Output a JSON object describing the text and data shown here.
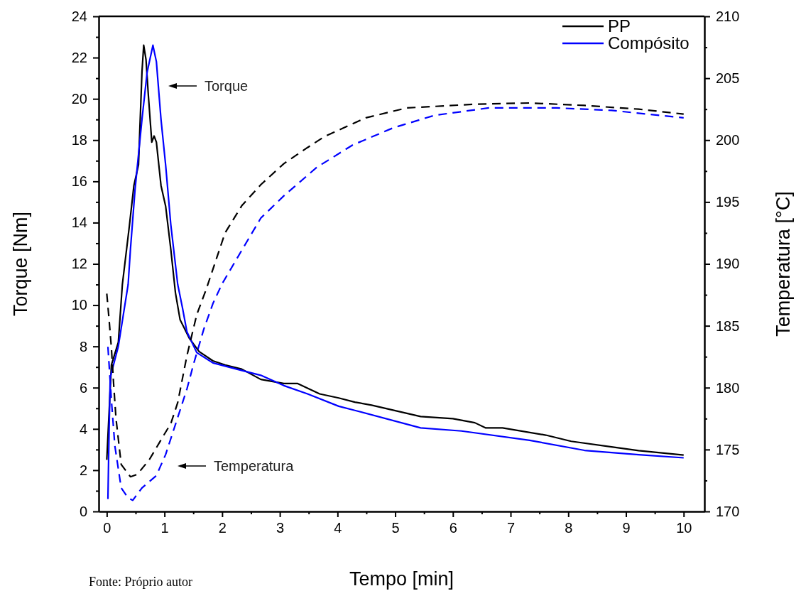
{
  "chart_data": {
    "type": "line",
    "xlabel": "Tempo [min]",
    "ylabel": "Torque [Nm]",
    "y2label": "Temperatura [°C]",
    "legend": "top right",
    "xlim": [
      -0.14,
      10.36
    ],
    "ylim": [
      0,
      24
    ],
    "y2lim": [
      170,
      210
    ],
    "xticks": [
      0,
      {
        "value": 0.5,
        "label": null
      },
      1,
      {
        "value": 1.5,
        "label": null
      },
      2,
      {
        "value": 2.5,
        "label": null
      },
      3,
      {
        "value": 3.5,
        "label": null
      },
      4,
      {
        "value": 4.5,
        "label": null
      },
      5,
      {
        "value": 5.5,
        "label": null
      },
      6,
      {
        "value": 6.5,
        "label": null
      },
      7,
      {
        "value": 7.5,
        "label": null
      },
      8,
      {
        "value": 8.5,
        "label": null
      },
      9,
      {
        "value": 9.5,
        "label": null
      },
      10
    ],
    "yticks": [
      0,
      {
        "value": 1,
        "label": null
      },
      2,
      {
        "value": 3,
        "label": null
      },
      4,
      {
        "value": 5,
        "label": null
      },
      6,
      {
        "value": 7,
        "label": null
      },
      8,
      {
        "value": 9,
        "label": null
      },
      10,
      {
        "value": 11,
        "label": null
      },
      12,
      {
        "value": 13,
        "label": null
      },
      14,
      {
        "value": 15,
        "label": null
      },
      16,
      {
        "value": 17,
        "label": null
      },
      18,
      {
        "value": 19,
        "label": null
      },
      20,
      {
        "value": 21,
        "label": null
      },
      22,
      {
        "value": 23,
        "label": null
      },
      24
    ],
    "y2ticks": [
      170,
      {
        "value": 172.5,
        "label": null
      },
      175,
      {
        "value": 177.5,
        "label": null
      },
      180,
      {
        "value": 182.5,
        "label": null
      },
      185,
      {
        "value": 187.5,
        "label": null
      },
      190,
      {
        "value": 192.5,
        "label": null
      },
      195,
      {
        "value": 197.5,
        "label": null
      },
      200,
      {
        "value": 202.5,
        "label": null
      },
      205,
      {
        "value": 207.5,
        "label": null
      },
      210
    ],
    "series": [
      {
        "name": "PP",
        "color": "#000000",
        "line_style": "solid",
        "x": [
          0.0,
          0.08,
          0.2,
          0.27,
          0.39,
          0.47,
          0.55,
          0.61,
          0.64,
          0.68,
          0.72,
          0.78,
          0.82,
          0.86,
          0.94,
          1.02,
          1.11,
          1.19,
          1.27,
          1.43,
          1.6,
          1.84,
          2.05,
          2.34,
          2.67,
          3.07,
          3.31,
          3.69,
          4.02,
          4.3,
          4.59,
          5.44,
          6.0,
          6.38,
          6.57,
          6.86,
          7.61,
          8.05,
          8.75,
          9.22,
          10.0
        ],
        "values": [
          2.5,
          7.1,
          8.2,
          11,
          13.8,
          15.8,
          16.8,
          21.3,
          22.6,
          21.9,
          20.2,
          17.9,
          18.2,
          17.9,
          15.8,
          14.8,
          12.7,
          10.6,
          9.3,
          8.4,
          7.75,
          7.3,
          7.1,
          6.9,
          6.4,
          6.2,
          6.2,
          5.7,
          5.5,
          5.3,
          5.15,
          4.6,
          4.5,
          4.3,
          4.05,
          4.05,
          3.7,
          3.4,
          3.13,
          2.95,
          2.73
        ]
      },
      {
        "name": "Compósito",
        "color": "#0000ff",
        "line_style": "solid",
        "x": [
          0.02,
          0.04,
          0.06,
          0.2,
          0.37,
          0.41,
          0.49,
          0.61,
          0.7,
          0.8,
          0.86,
          0.94,
          1.02,
          1.11,
          1.23,
          1.31,
          1.39,
          1.56,
          1.84,
          2.25,
          2.67,
          3.07,
          3.48,
          4.02,
          4.3,
          5.44,
          6.15,
          7.33,
          8.28,
          9.22,
          10.0
        ],
        "values": [
          0.6,
          3.9,
          6.5,
          8.0,
          11,
          12.7,
          15.6,
          19.0,
          21.3,
          22.6,
          21.8,
          19.0,
          16.8,
          13.9,
          11.0,
          9.9,
          8.7,
          7.7,
          7.2,
          6.9,
          6.6,
          6.1,
          5.7,
          5.1,
          4.9,
          4.05,
          3.9,
          3.45,
          2.96,
          2.75,
          2.6
        ]
      },
      {
        "color": "#000000",
        "line_style": "dashed",
        "axis": "y2",
        "x": [
          0.0,
          0.04,
          0.08,
          0.12,
          0.16,
          0.25,
          0.41,
          0.53,
          0.74,
          0.98,
          1.11,
          1.23,
          1.39,
          1.56,
          1.72,
          2.05,
          2.34,
          2.67,
          3.07,
          3.48,
          3.78,
          4.49,
          5.2,
          6.38,
          7.33,
          8.28,
          9.22,
          10.0
        ],
        "values": [
          187.6,
          185.5,
          183.2,
          180.2,
          177.5,
          173.8,
          172.8,
          173.0,
          174.2,
          176.1,
          177.1,
          178.8,
          182.6,
          185.9,
          187.9,
          192.5,
          194.7,
          196.4,
          198.1,
          199.4,
          200.3,
          201.8,
          202.6,
          202.9,
          203.0,
          202.8,
          202.5,
          202.1
        ]
      },
      {
        "color": "#0000ff",
        "line_style": "dashed",
        "axis": "y2",
        "x": [
          0.02,
          0.08,
          0.14,
          0.25,
          0.37,
          0.45,
          0.61,
          0.86,
          1.02,
          1.23,
          1.39,
          1.51,
          1.68,
          1.84,
          2.0,
          2.34,
          2.67,
          3.07,
          3.64,
          4.26,
          4.97,
          5.68,
          6.62,
          7.8,
          8.75,
          10.0
        ],
        "values": [
          183.3,
          179.0,
          175.3,
          171.9,
          171.1,
          170.9,
          171.9,
          172.9,
          174.6,
          177.6,
          179.9,
          182.0,
          184.7,
          186.8,
          188.4,
          191.1,
          193.7,
          195.5,
          197.8,
          199.6,
          201.0,
          202.0,
          202.6,
          202.6,
          202.4,
          201.8
        ]
      }
    ],
    "annotations": [
      "Torque",
      "Temperatura",
      "Fonte: Próprio autor"
    ]
  }
}
